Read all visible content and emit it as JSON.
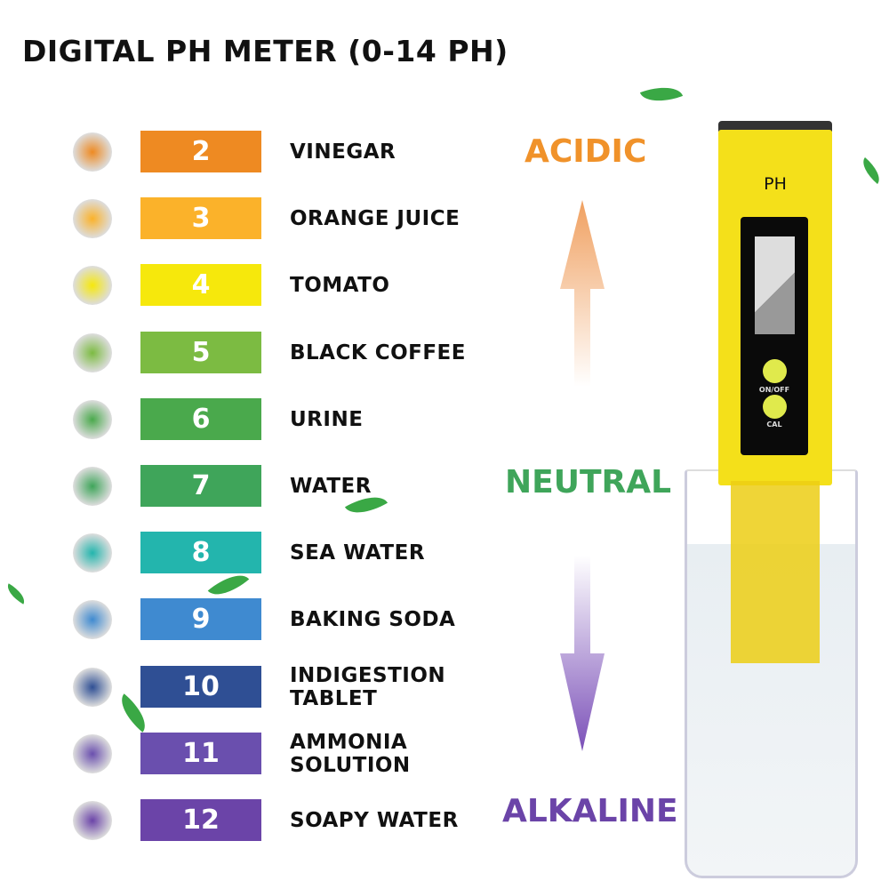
{
  "title": "DIGITAL PH METER (0-14 PH)",
  "scale": [
    {
      "ph": "2",
      "label": "VINEGAR",
      "color": "#ee8a22",
      "icon": "vinegar-bottle-icon"
    },
    {
      "ph": "3",
      "label": "ORANGE JUICE",
      "color": "#fbb22a",
      "icon": "orange-juice-icon"
    },
    {
      "ph": "4",
      "label": "TOMATO",
      "color": "#f6e80c",
      "icon": "tomato-icon"
    },
    {
      "ph": "5",
      "label": "BLACK COFFEE",
      "color": "#7cbb42",
      "icon": "coffee-icon"
    },
    {
      "ph": "6",
      "label": "URINE",
      "color": "#4aa94c",
      "icon": "urine-sample-icon"
    },
    {
      "ph": "7",
      "label": "WATER",
      "color": "#3fa55a",
      "icon": "water-glass-icon"
    },
    {
      "ph": "8",
      "label": "SEA WATER",
      "color": "#23b5ad",
      "icon": "sea-water-icon"
    },
    {
      "ph": "9",
      "label": "BAKING SODA",
      "color": "#3f8ad0",
      "icon": "baking-soda-icon"
    },
    {
      "ph": "10",
      "label": "INDIGESTION\nTABLET",
      "color": "#2f4f94",
      "icon": "stomach-icon"
    },
    {
      "ph": "11",
      "label": "AMMONIA\nSOLUTION",
      "color": "#6a4fae",
      "icon": "ammonia-bottle-icon"
    },
    {
      "ph": "12",
      "label": "SOAPY WATER",
      "color": "#6b44a8",
      "icon": "soap-icon"
    }
  ],
  "zones": {
    "acidic": "ACIDIC",
    "neutral": "NEUTRAL",
    "alkaline": "ALKALINE",
    "acidic_color": "#f0922a",
    "neutral_color": "#3fa55a",
    "alkaline_color": "#6b44a8"
  },
  "meter": {
    "brand": "PH",
    "on_off": "ON/OFF",
    "cal": "CAL"
  }
}
